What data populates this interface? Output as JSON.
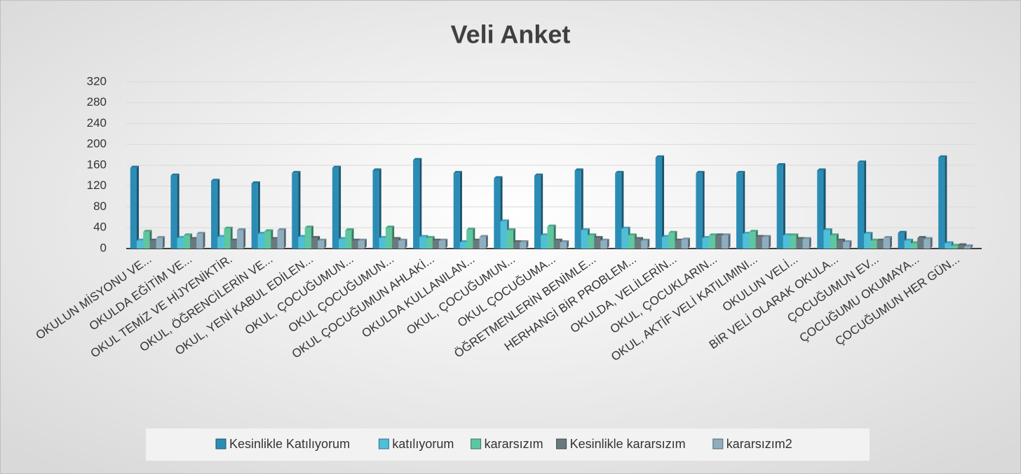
{
  "chart_data": {
    "type": "bar",
    "title": "Veli Anket",
    "categories": [
      "OKULUN MİSYONU VE...",
      "OKULDA EĞİTİM VE...",
      "OKUL TEMİZ VE HİJYENİKTİR.",
      "OKUL, ÖĞRENCİLERİN VE...",
      "OKUL, YENİ KABUL EDİLEN...",
      "OKUL, ÇOCUĞUMUN...",
      "OKUL ÇOCUĞUMUN...",
      "OKUL ÇOCUĞUMUN AHLAKİ...",
      "OKULDA KULLANILAN...",
      "OKUL, ÇOCUĞUMUN...",
      "OKUL ÇOCUĞUMA...",
      "ÖĞRETMENLERİN BENİMLE...",
      "HERHANGİ BİR PROBLEM...",
      "OKULDA, VELİLERİN...",
      "OKUL, ÇOCUKLARIN...",
      "OKUL, AKTİF VELİ KATILIMINI...",
      "OKULUN VELİ...",
      "BİR VELİ OLARAK OKULA...",
      "ÇOCUĞUMUN EV...",
      "ÇOCUĞUMU OKUMAYA...",
      "ÇOCUĞUMUN HER GÜN..."
    ],
    "series": [
      {
        "name": "Kesinlikle Katılıyorum",
        "color": "#2b8db5",
        "values": [
          155,
          140,
          130,
          125,
          145,
          155,
          150,
          170,
          145,
          135,
          140,
          150,
          145,
          175,
          145,
          145,
          160,
          150,
          165,
          30,
          175
        ]
      },
      {
        "name": "katılıyorum",
        "color": "#4fbfd8",
        "values": [
          15,
          20,
          22,
          28,
          22,
          18,
          20,
          22,
          12,
          52,
          25,
          35,
          38,
          22,
          20,
          28,
          25,
          35,
          28,
          15,
          10
        ]
      },
      {
        "name": "kararsızım",
        "color": "#5ec6a0",
        "values": [
          32,
          25,
          38,
          33,
          40,
          35,
          40,
          20,
          36,
          35,
          42,
          25,
          25,
          30,
          25,
          32,
          25,
          25,
          15,
          10,
          5
        ]
      },
      {
        "name": "Kesinlikle kararsızım",
        "color": "#687a7e",
        "values": [
          15,
          18,
          15,
          18,
          20,
          15,
          18,
          15,
          15,
          12,
          15,
          20,
          18,
          15,
          25,
          22,
          18,
          15,
          15,
          20,
          6
        ]
      },
      {
        "name": "kararsızım2",
        "color": "#8eaec0",
        "values": [
          20,
          28,
          35,
          35,
          15,
          15,
          15,
          15,
          22,
          12,
          12,
          15,
          15,
          17,
          25,
          22,
          18,
          12,
          20,
          18,
          4
        ]
      }
    ],
    "ylim": [
      0,
      320
    ],
    "yticks": [
      0,
      40,
      80,
      120,
      160,
      200,
      240,
      280,
      320
    ],
    "grid": true,
    "legend": "bottom"
  }
}
